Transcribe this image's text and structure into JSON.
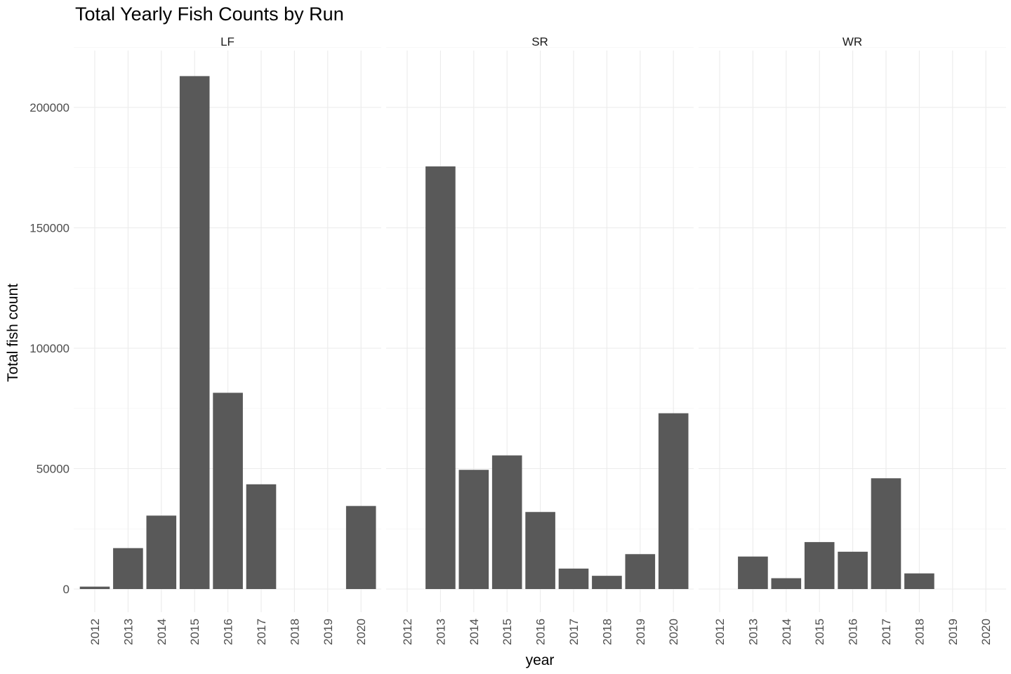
{
  "chart_data": {
    "type": "bar",
    "title": "Total Yearly Fish Counts by Run",
    "xlabel": "year",
    "ylabel": "Total fish count",
    "ylim": [
      0,
      220000
    ],
    "y_ticks": [
      0,
      50000,
      100000,
      150000,
      200000
    ],
    "y_tick_labels": [
      "0",
      "50000",
      "100000",
      "150000",
      "200000"
    ],
    "grid": true,
    "bar_color": "#595959",
    "categories": [
      "2012",
      "2013",
      "2014",
      "2015",
      "2016",
      "2017",
      "2018",
      "2019",
      "2020"
    ],
    "facets": [
      {
        "label": "LF",
        "values": [
          1000,
          17000,
          30500,
          213000,
          81500,
          43500,
          null,
          null,
          34500
        ]
      },
      {
        "label": "SR",
        "values": [
          null,
          175500,
          49500,
          55500,
          32000,
          8500,
          5500,
          14500,
          73000
        ]
      },
      {
        "label": "WR",
        "values": [
          null,
          13500,
          4500,
          19500,
          15500,
          46000,
          6500,
          null,
          null
        ]
      }
    ]
  }
}
